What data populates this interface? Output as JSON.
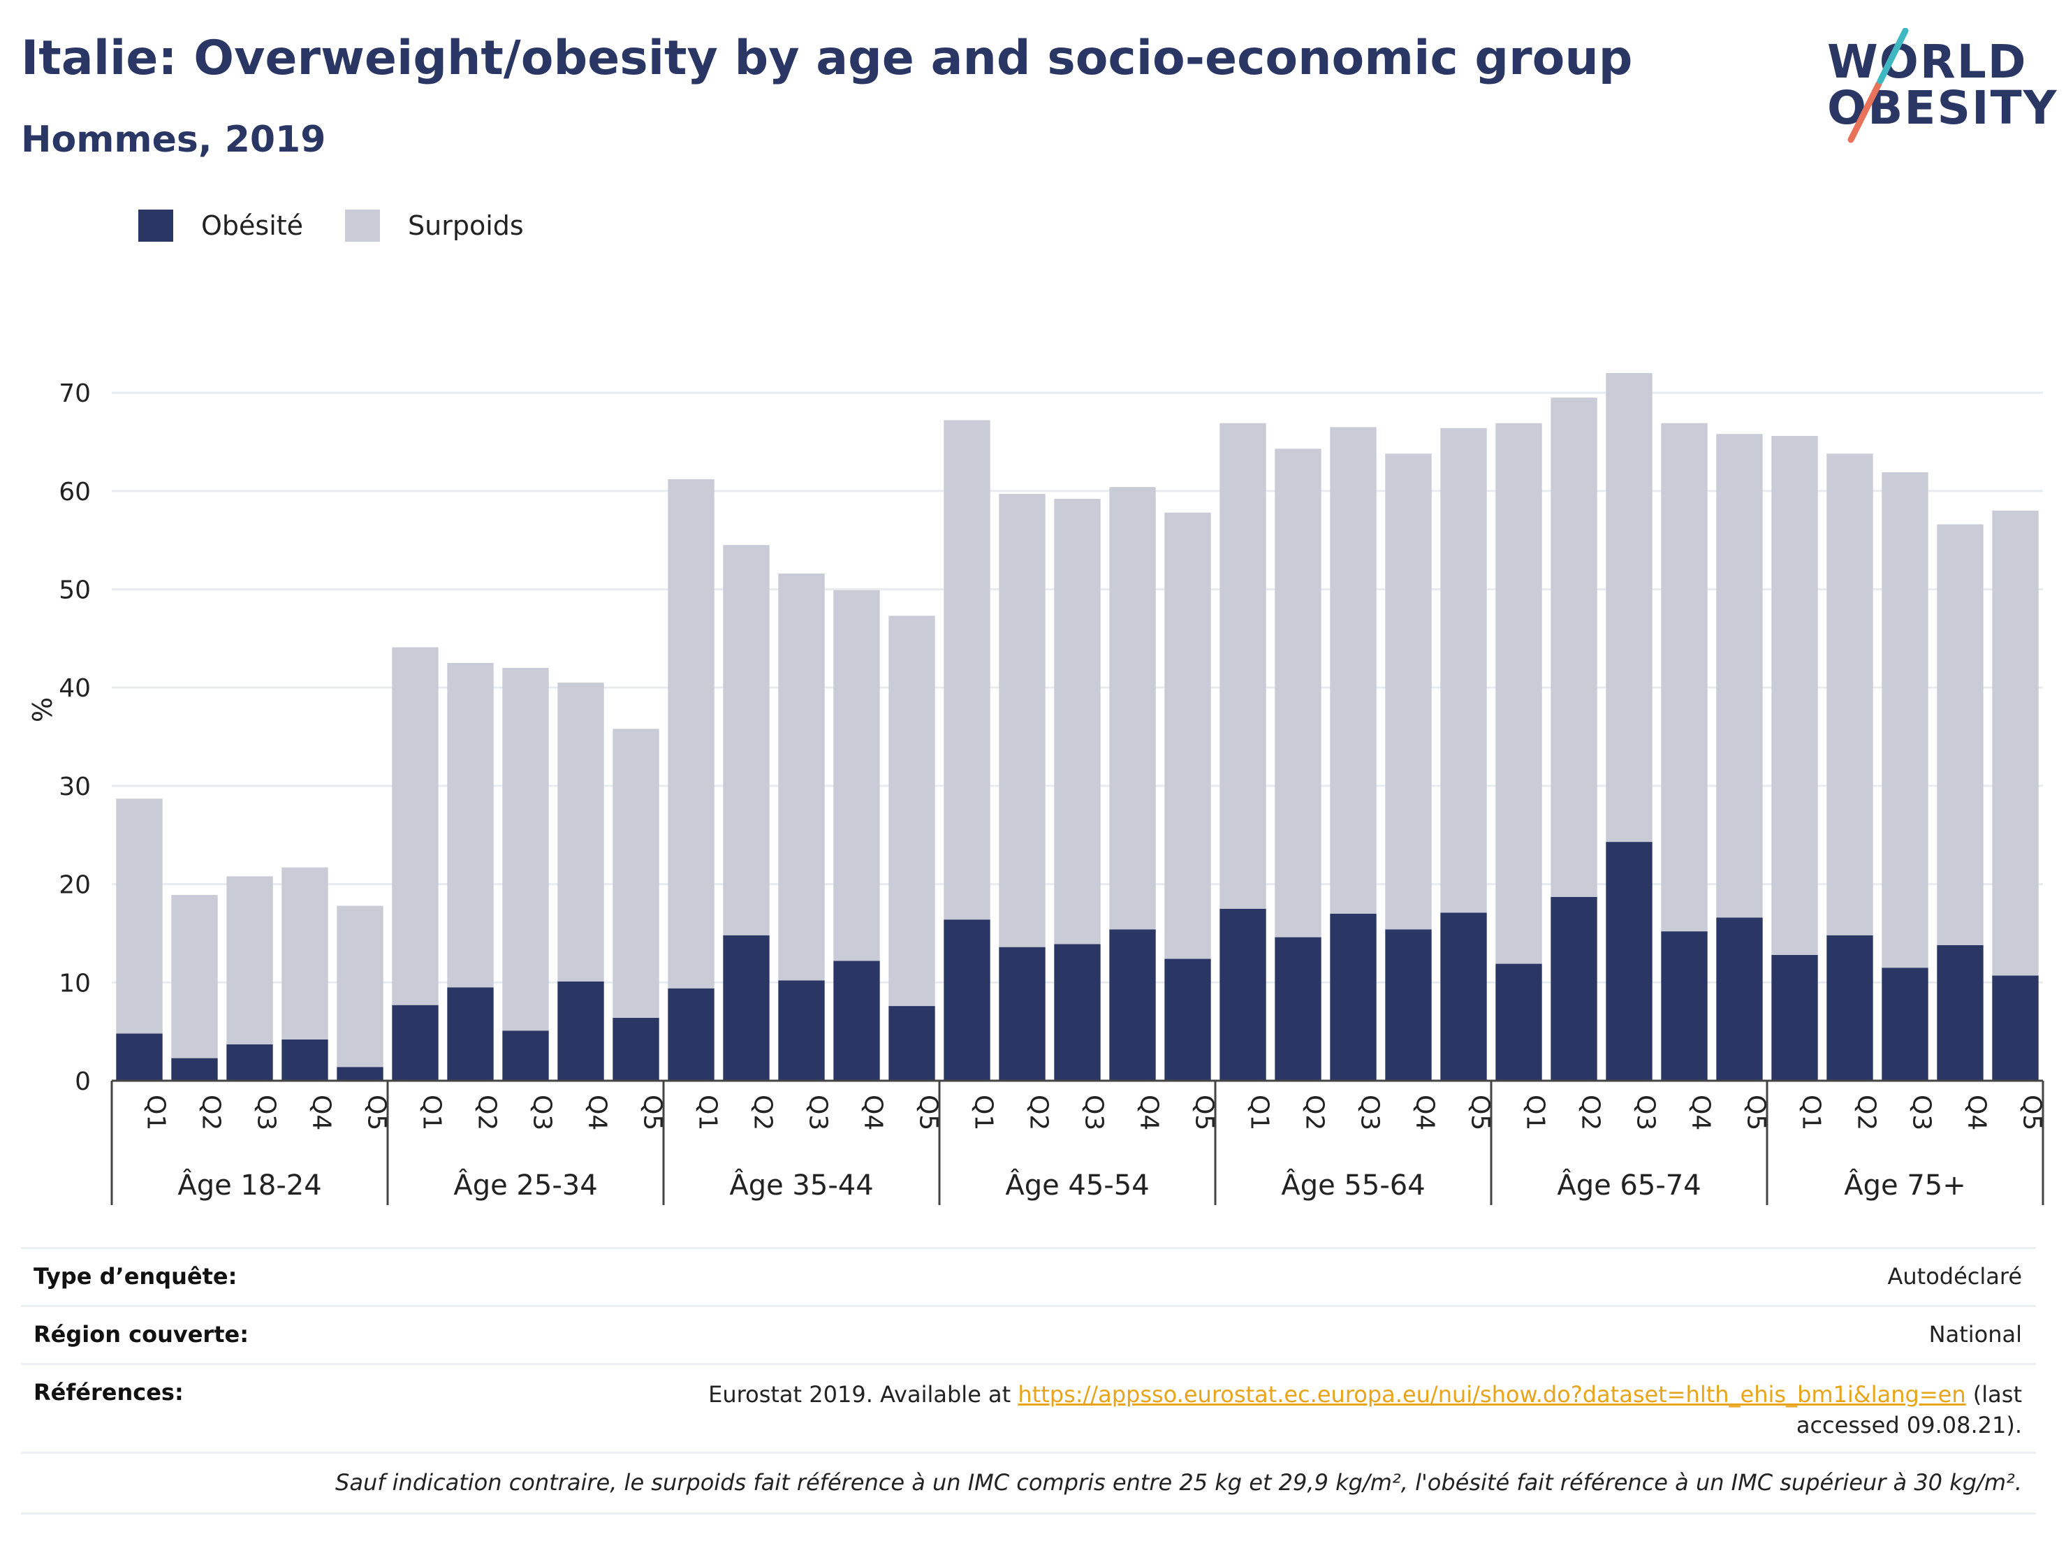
{
  "header": {
    "title": "Italie: Overweight/obesity by age and socio-economic group",
    "subtitle": "Hommes, 2019",
    "logo_line1": "WORLD",
    "logo_line2": "OBESITY"
  },
  "colors": {
    "obesity": "#2a3764",
    "overweight": "#c9cbd7",
    "grid": "#e8ecef",
    "link": "#e8a51c"
  },
  "chart_data": {
    "type": "bar",
    "stacked": true,
    "ylabel": "%",
    "ylim": [
      0,
      75
    ],
    "yticks": [
      0,
      10,
      20,
      30,
      40,
      50,
      60,
      70
    ],
    "grid": true,
    "legend_position": "top-left",
    "groups": [
      {
        "label": "Âge 18-24",
        "categories": [
          "Q1",
          "Q2",
          "Q3",
          "Q4",
          "Q5"
        ]
      },
      {
        "label": "Âge 25-34",
        "categories": [
          "Q1",
          "Q2",
          "Q3",
          "Q4",
          "Q5"
        ]
      },
      {
        "label": "Âge 35-44",
        "categories": [
          "Q1",
          "Q2",
          "Q3",
          "Q4",
          "Q5"
        ]
      },
      {
        "label": "Âge 45-54",
        "categories": [
          "Q1",
          "Q2",
          "Q3",
          "Q4",
          "Q5"
        ]
      },
      {
        "label": "Âge 55-64",
        "categories": [
          "Q1",
          "Q2",
          "Q3",
          "Q4",
          "Q5"
        ]
      },
      {
        "label": "Âge 65-74",
        "categories": [
          "Q1",
          "Q2",
          "Q3",
          "Q4",
          "Q5"
        ]
      },
      {
        "label": "Âge 75+",
        "categories": [
          "Q1",
          "Q2",
          "Q3",
          "Q4",
          "Q5"
        ]
      }
    ],
    "series": [
      {
        "name": "Obésité",
        "values": [
          4.8,
          2.3,
          3.7,
          4.2,
          1.4,
          7.7,
          9.5,
          5.1,
          10.1,
          6.4,
          9.4,
          14.8,
          10.2,
          12.2,
          7.6,
          16.4,
          13.6,
          13.9,
          15.4,
          12.4,
          17.5,
          14.6,
          17.0,
          15.4,
          17.1,
          11.9,
          18.7,
          24.3,
          15.2,
          16.6,
          12.8,
          14.8,
          11.5,
          13.8,
          10.7
        ]
      },
      {
        "name": "Surpoids",
        "values": [
          23.9,
          16.6,
          17.1,
          17.5,
          16.4,
          36.4,
          33.0,
          36.9,
          30.4,
          29.4,
          51.8,
          39.7,
          41.4,
          37.7,
          39.7,
          50.8,
          46.1,
          45.3,
          45.0,
          45.4,
          49.4,
          49.7,
          49.5,
          48.4,
          49.3,
          55.0,
          50.8,
          47.7,
          51.7,
          49.2,
          52.8,
          49.0,
          50.4,
          42.8,
          47.3
        ]
      }
    ]
  },
  "info": {
    "survey_label": "Type d’enquête:",
    "survey_value": "Autodéclaré",
    "region_label": "Région couverte:",
    "region_value": "National",
    "ref_label": "Références:",
    "ref_prefix": "Eurostat 2019. Available at ",
    "ref_link": "https://appsso.eurostat.ec.europa.eu/nui/show.do?dataset=hlth_ehis_bm1i&lang=en",
    "ref_suffix": " (last accessed 09.08.21).",
    "note": "Sauf indication contraire, le surpoids fait référence à un IMC compris entre 25 kg et 29,9 kg/m², l'obésité fait référence à un IMC supérieur à 30 kg/m²."
  }
}
